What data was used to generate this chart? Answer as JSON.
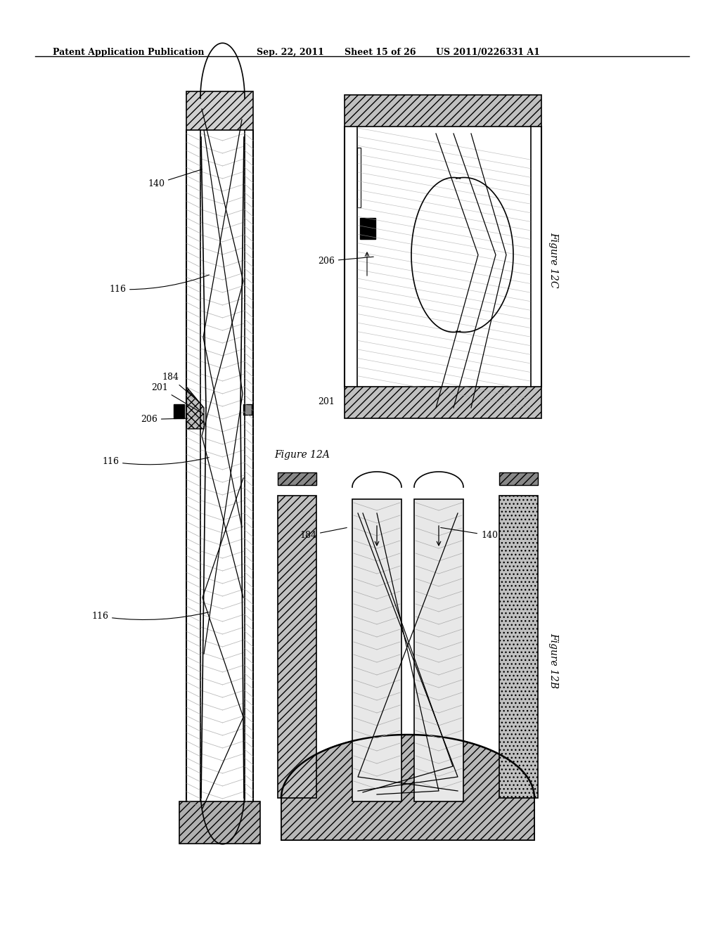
{
  "title_line1": "Patent Application Publication",
  "title_line2": "Sep. 22, 2011",
  "title_line3": "Sheet 15 of 26",
  "title_line4": "US 2011/0226331 A1",
  "fig_labels": {
    "12A": "Figure 12A",
    "12B": "Figure 12B",
    "12C": "Figure 12C"
  },
  "bg_color": "#ffffff",
  "hatch_color": "#888888",
  "line_color": "#000000"
}
